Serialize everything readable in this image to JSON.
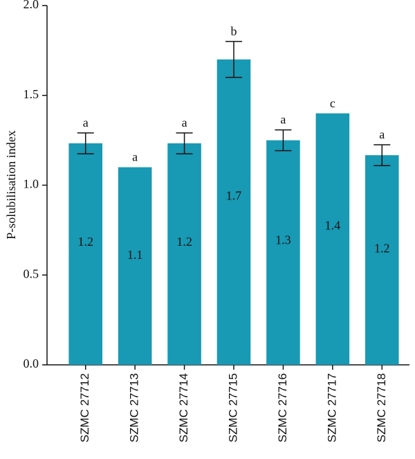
{
  "chart_data": {
    "type": "bar",
    "ylabel": "P-solubilisation index",
    "categories": [
      "SZMC 27712",
      "SZMC 27713",
      "SZMC 27714",
      "SZMC 27715",
      "SZMC 27716",
      "SZMC 27717",
      "SZMC 27718"
    ],
    "values": [
      1.233,
      1.1,
      1.233,
      1.7,
      1.25,
      1.4,
      1.167
    ],
    "value_labels": [
      "1.2",
      "1.1",
      "1.2",
      "1.7",
      "1.3",
      "1.4",
      "1.2"
    ],
    "errors": [
      0.058,
      null,
      0.058,
      0.1,
      0.058,
      null,
      0.058
    ],
    "annotations": [
      "a",
      "a",
      "a",
      "b",
      "a",
      "c",
      "a"
    ],
    "color": "#1899b4",
    "ylim": [
      0,
      2.0
    ],
    "yticks": [
      {
        "value": 0,
        "label": "0.0"
      },
      {
        "value": 0.5,
        "label": "0.5"
      },
      {
        "value": 1,
        "label": "1.0"
      },
      {
        "value": 1.5,
        "label": "1.5"
      },
      {
        "value": 2,
        "label": "2.0"
      }
    ]
  }
}
